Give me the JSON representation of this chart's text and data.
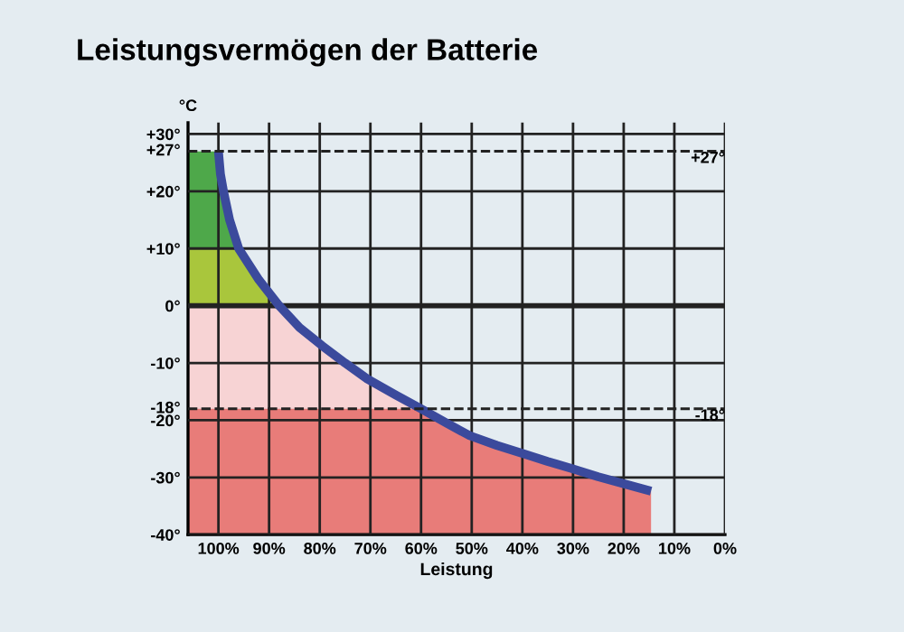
{
  "chart_data": {
    "type": "line",
    "title": "Leistungsvermögen der Batterie",
    "xlabel": "Leistung",
    "ylabel": "°C",
    "x": [
      100,
      99.6,
      99,
      97.8,
      96,
      92,
      88,
      84,
      79.5,
      75,
      70.6,
      65,
      60,
      55,
      50.4,
      45,
      39.6,
      35,
      30,
      25,
      20,
      14.6
    ],
    "series": [
      {
        "color": "#3b4a9c",
        "values": [
          27,
          23,
          20,
          15,
          10,
          4.5,
          0,
          -3.8,
          -7,
          -10,
          -12.8,
          -15.6,
          -18,
          -20.5,
          -22.7,
          -24.4,
          -25.9,
          -27.2,
          -28.5,
          -29.9,
          -31.1,
          -32.4
        ]
      }
    ],
    "xlim": [
      106,
      0
    ],
    "ylim": [
      -40,
      32
    ],
    "xticks": [
      {
        "value": 100,
        "label": "100%"
      },
      {
        "value": 90,
        "label": "90%"
      },
      {
        "value": 80,
        "label": "80%"
      },
      {
        "value": 70,
        "label": "70%"
      },
      {
        "value": 60,
        "label": "60%"
      },
      {
        "value": 50,
        "label": "50%"
      },
      {
        "value": 40,
        "label": "40%"
      },
      {
        "value": 30,
        "label": "30%"
      },
      {
        "value": 20,
        "label": "20%"
      },
      {
        "value": 10,
        "label": "10%"
      },
      {
        "value": 0,
        "label": "0%"
      }
    ],
    "yticks": [
      {
        "value": 30,
        "label": "+30°"
      },
      {
        "value": 20,
        "label": "+20°"
      },
      {
        "value": 10,
        "label": "+10°"
      },
      {
        "value": 0,
        "label": "0°"
      },
      {
        "value": -10,
        "label": "-10°"
      },
      {
        "value": -20,
        "label": "-20°"
      },
      {
        "value": -30,
        "label": "-30°"
      },
      {
        "value": -40,
        "label": "-40°"
      }
    ],
    "grid": true,
    "ref_lines": [
      {
        "axis": "y",
        "value": 27,
        "label": "+27°",
        "line_style": "dashed"
      },
      {
        "axis": "y",
        "value": -18,
        "label": "-18°",
        "line_style": "dashed"
      }
    ],
    "bands": [
      {
        "axis": "y",
        "from": 10,
        "to": 27,
        "color": "#4ea84a"
      },
      {
        "axis": "y",
        "from": 0,
        "to": 10,
        "color": "#a9c63c"
      },
      {
        "axis": "y",
        "from": -18,
        "to": 0,
        "color": "#f7d3d4"
      },
      {
        "axis": "y",
        "from": -40,
        "to": -18,
        "color": "#e87c79"
      }
    ]
  }
}
